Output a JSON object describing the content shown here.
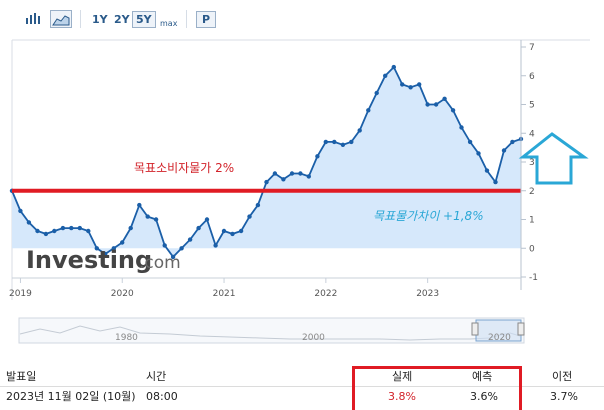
{
  "toolbar": {
    "bar_chart_icon": "bar-chart-icon",
    "area_chart_icon": "area-chart-icon",
    "ranges": [
      "1Y",
      "2Y",
      "5Y",
      "max"
    ],
    "active_range": "5Y",
    "print_label": "P"
  },
  "annotations": {
    "target_label": "목표소비자물가 2%",
    "diff_label": "목표물가차이 +1,8%",
    "arrow_icon": "up-arrow-icon"
  },
  "watermark": {
    "brand": "Investing",
    "suffix": ".com"
  },
  "navigator": {
    "labels": [
      "1980",
      "2000",
      "2020"
    ]
  },
  "colors": {
    "line": "#1b5fa8",
    "fill": "#d6e8fb",
    "target_line": "#e01b24",
    "annotation_red": "#d2232a",
    "annotation_blue": "#2aa7d6",
    "arrow": "#2aa7d6"
  },
  "chart_data": {
    "type": "area",
    "title": "",
    "xlabel": "",
    "ylabel": "",
    "ylim": [
      -1,
      7
    ],
    "yticks": [
      -1,
      0,
      1,
      2,
      3,
      4,
      5,
      6,
      7
    ],
    "xticks": [
      "2019",
      "2020",
      "2021",
      "2022",
      "2023"
    ],
    "grid": false,
    "reference_line": {
      "y": 2,
      "label": "목표소비자물가 2%"
    },
    "series": [
      {
        "values": [
          [
            2018.917,
            2.0
          ],
          [
            2019.0,
            1.3
          ],
          [
            2019.083,
            0.9
          ],
          [
            2019.167,
            0.6
          ],
          [
            2019.25,
            0.5
          ],
          [
            2019.333,
            0.6
          ],
          [
            2019.417,
            0.7
          ],
          [
            2019.5,
            0.7
          ],
          [
            2019.583,
            0.7
          ],
          [
            2019.667,
            0.6
          ],
          [
            2019.75,
            0.0
          ],
          [
            2019.833,
            -0.2
          ],
          [
            2019.917,
            0.0
          ],
          [
            2020.0,
            0.2
          ],
          [
            2020.083,
            0.7
          ],
          [
            2020.167,
            1.5
          ],
          [
            2020.25,
            1.1
          ],
          [
            2020.333,
            1.0
          ],
          [
            2020.417,
            0.1
          ],
          [
            2020.5,
            -0.3
          ],
          [
            2020.583,
            0.0
          ],
          [
            2020.667,
            0.3
          ],
          [
            2020.75,
            0.7
          ],
          [
            2020.833,
            1.0
          ],
          [
            2020.917,
            0.1
          ],
          [
            2021.0,
            0.6
          ],
          [
            2021.083,
            0.5
          ],
          [
            2021.167,
            0.6
          ],
          [
            2021.25,
            1.1
          ],
          [
            2021.333,
            1.5
          ],
          [
            2021.417,
            2.3
          ],
          [
            2021.5,
            2.6
          ],
          [
            2021.583,
            2.4
          ],
          [
            2021.667,
            2.6
          ],
          [
            2021.75,
            2.6
          ],
          [
            2021.833,
            2.5
          ],
          [
            2021.917,
            3.2
          ],
          [
            2022.0,
            3.7
          ],
          [
            2022.083,
            3.7
          ],
          [
            2022.167,
            3.6
          ],
          [
            2022.25,
            3.7
          ],
          [
            2022.333,
            4.1
          ],
          [
            2022.417,
            4.8
          ],
          [
            2022.5,
            5.4
          ],
          [
            2022.583,
            6.0
          ],
          [
            2022.667,
            6.3
          ],
          [
            2022.75,
            5.7
          ],
          [
            2022.833,
            5.6
          ],
          [
            2022.917,
            5.7
          ],
          [
            2023.0,
            5.0
          ],
          [
            2023.083,
            5.0
          ],
          [
            2023.167,
            5.2
          ],
          [
            2023.25,
            4.8
          ],
          [
            2023.333,
            4.2
          ],
          [
            2023.417,
            3.7
          ],
          [
            2023.5,
            3.3
          ],
          [
            2023.583,
            2.7
          ],
          [
            2023.667,
            2.3
          ],
          [
            2023.75,
            3.4
          ],
          [
            2023.833,
            3.7
          ],
          [
            2023.917,
            3.8
          ]
        ]
      }
    ]
  },
  "table": {
    "headers": [
      "발표일",
      "시간",
      "실제",
      "예측",
      "이전"
    ],
    "rows": [
      [
        "2023년 11월 02일 (10월)",
        "08:00",
        "3.8%",
        "3.6%",
        "3.7%"
      ]
    ]
  }
}
